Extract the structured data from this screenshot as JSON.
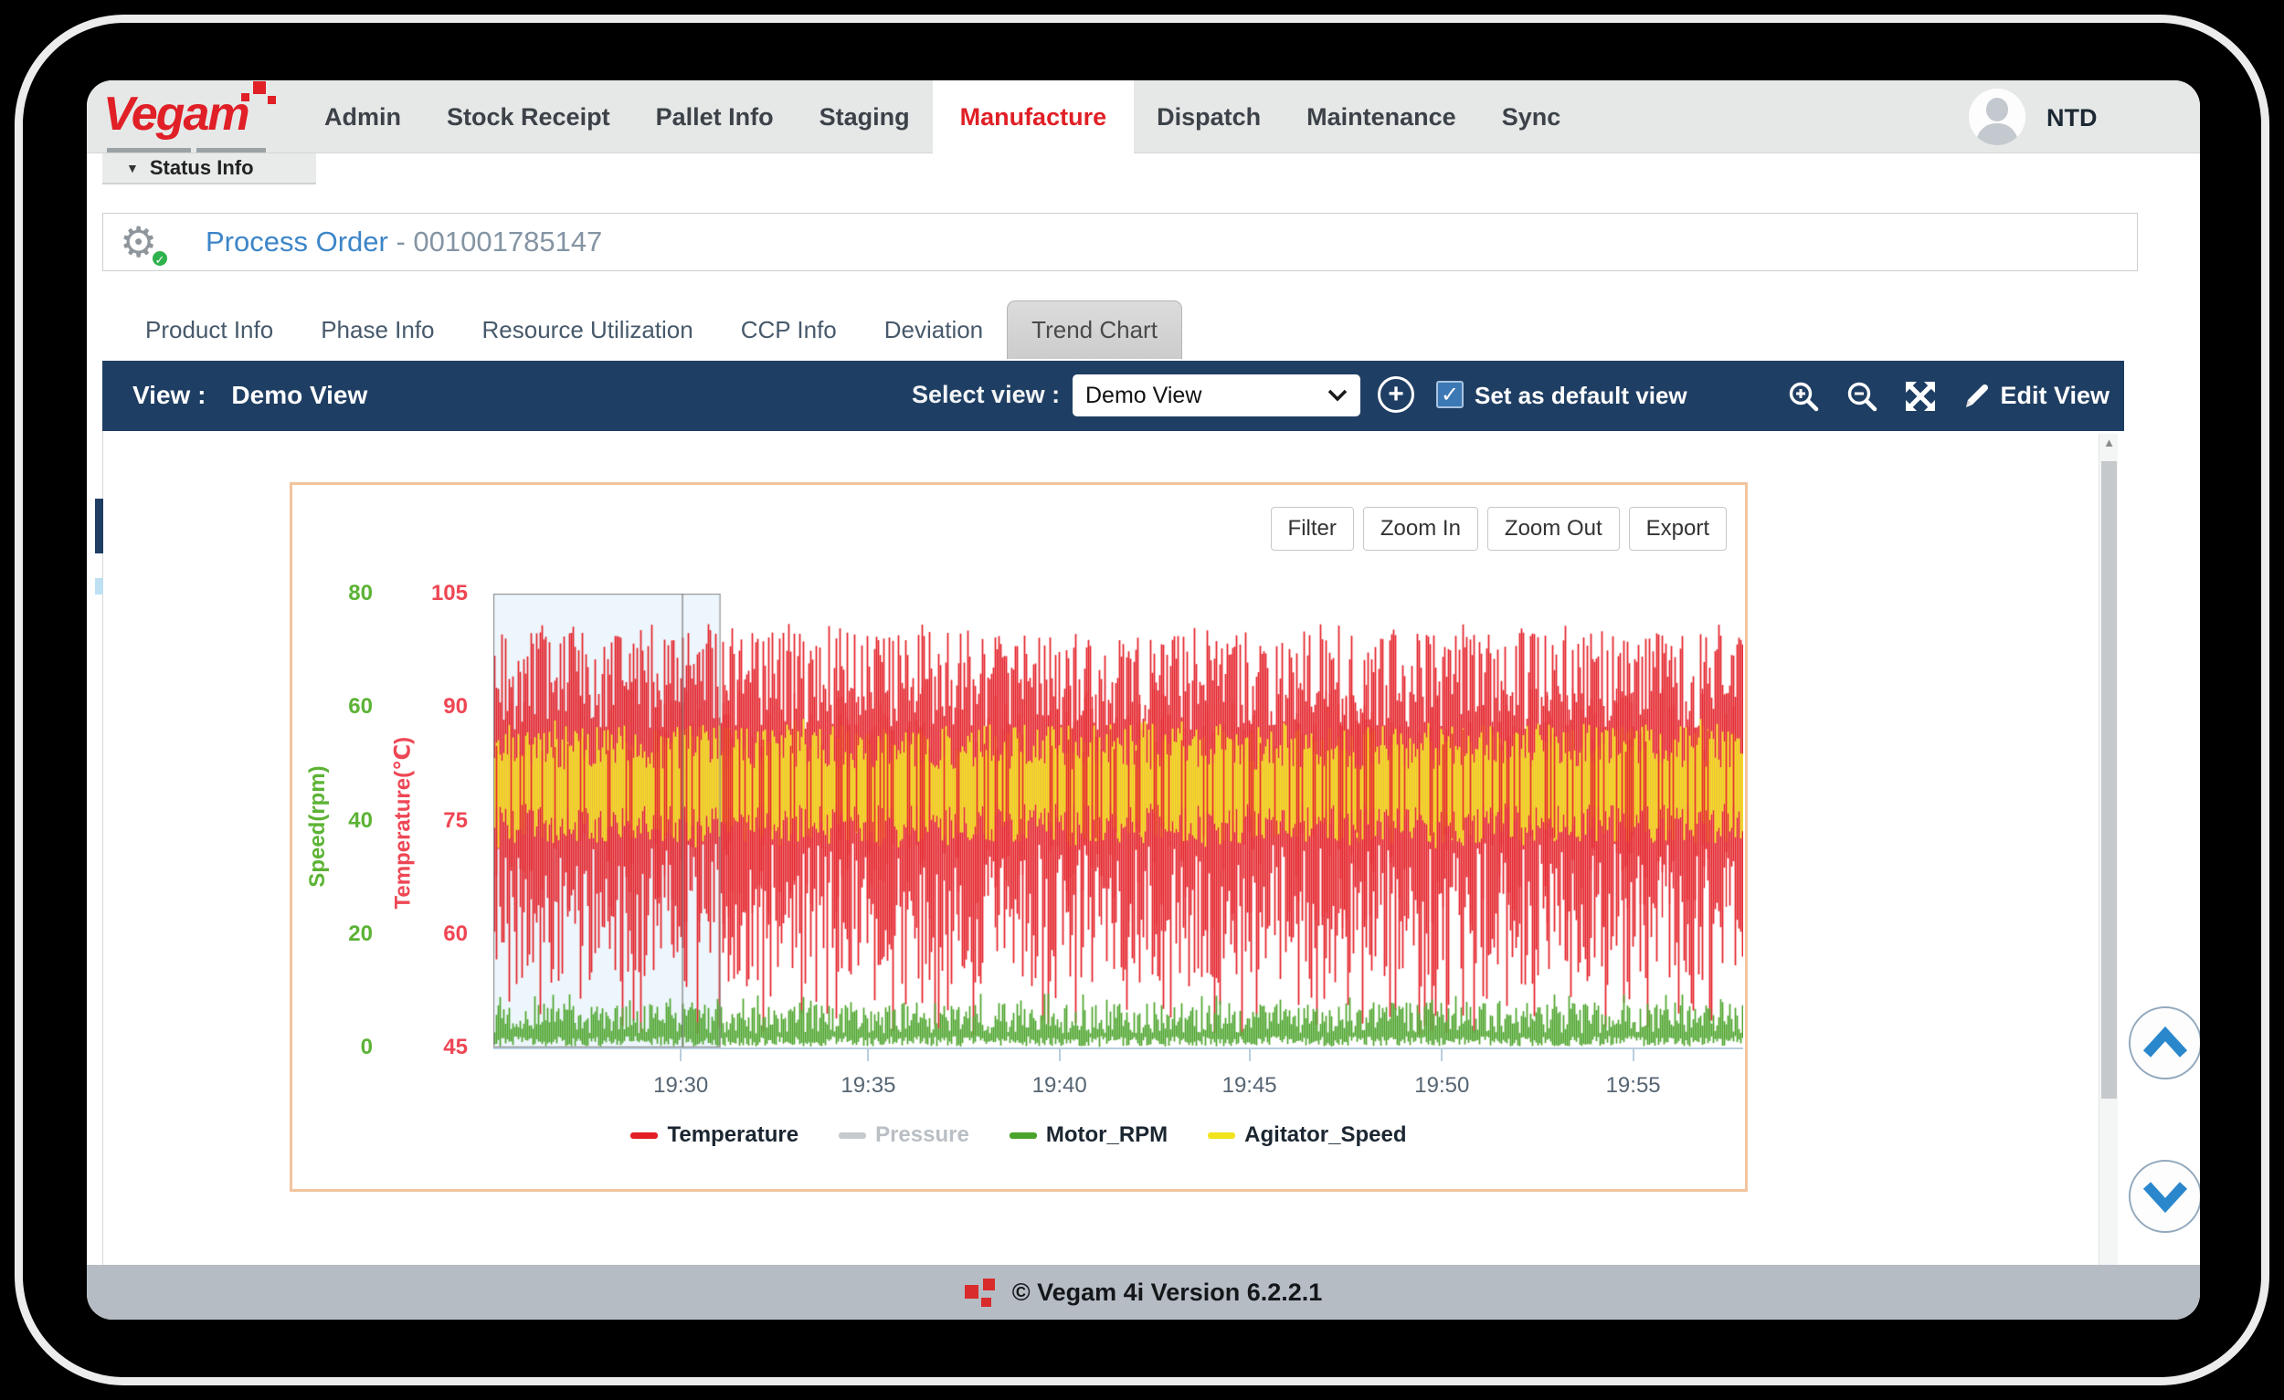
{
  "nav": {
    "logo_text": "Vegam",
    "items": [
      {
        "label": "Admin",
        "active": false
      },
      {
        "label": "Stock Receipt",
        "active": false
      },
      {
        "label": "Pallet Info",
        "active": false
      },
      {
        "label": "Staging",
        "active": false
      },
      {
        "label": "Manufacture",
        "active": true
      },
      {
        "label": "Dispatch",
        "active": false
      },
      {
        "label": "Maintenance",
        "active": false
      },
      {
        "label": "Sync",
        "active": false
      }
    ],
    "user": "NTD"
  },
  "status_bar": {
    "label": "Status Info",
    "caret": "▼"
  },
  "process_order": {
    "prefix": "Process Order",
    "separator": " - ",
    "number": "001001785147"
  },
  "tabs": [
    {
      "label": "Product Info",
      "active": false
    },
    {
      "label": "Phase Info",
      "active": false
    },
    {
      "label": "Resource Utilization",
      "active": false
    },
    {
      "label": "CCP Info",
      "active": false
    },
    {
      "label": "Deviation",
      "active": false
    },
    {
      "label": "Trend Chart",
      "active": true
    }
  ],
  "toolbar": {
    "view_label": "View :",
    "view_value": "Demo View",
    "select_label": "Select view :",
    "select_value": "Demo View",
    "plus_label": "+",
    "check_glyph": "✓",
    "set_default_label": "Set as default view",
    "set_default_checked": true,
    "edit_view_label": "Edit View"
  },
  "chart_buttons": [
    "Filter",
    "Zoom In",
    "Zoom Out",
    "Export"
  ],
  "chart_data": {
    "type": "line",
    "title": "",
    "x_axis": {
      "ticks": [
        {
          "label": "19:30",
          "pct": 15.0
        },
        {
          "label": "19:35",
          "pct": 30.0
        },
        {
          "label": "19:40",
          "pct": 45.3
        },
        {
          "label": "19:45",
          "pct": 60.5
        },
        {
          "label": "19:50",
          "pct": 75.9
        },
        {
          "label": "19:55",
          "pct": 91.2
        }
      ]
    },
    "y_axes": {
      "speed": {
        "label": "Speed(rpm)",
        "color": "#5cb335",
        "min": 0,
        "max": 80,
        "ticks": [
          "80",
          "60",
          "40",
          "20",
          "0"
        ]
      },
      "temperature": {
        "label": "Temperature(℃)",
        "color": "#ee4654",
        "min": 45,
        "max": 105,
        "ticks": [
          "105",
          "90",
          "75",
          "60",
          "45"
        ]
      }
    },
    "series": [
      {
        "name": "Temperature",
        "color": "#e31e25",
        "axis": "temperature",
        "enabled": true,
        "band": {
          "high": [
            87,
            100
          ],
          "low": [
            53,
            72
          ],
          "spike_high": [
            98,
            101
          ],
          "spike_high_prob": 0.1,
          "spike_low": [
            46.5,
            52
          ],
          "spike_low_prob": 0.1
        }
      },
      {
        "name": "Pressure",
        "color": "#c6cacd",
        "axis": "temperature",
        "enabled": false,
        "band": null
      },
      {
        "name": "Motor_RPM",
        "color": "#4aa32a",
        "axis": "speed",
        "enabled": true,
        "band": {
          "high": [
            2.5,
            8
          ],
          "low": [
            0.2,
            2
          ],
          "spike_high": [
            8,
            9.5
          ],
          "spike_high_prob": 0.05,
          "spike_low": [
            0.1,
            0.5
          ],
          "spike_low_prob": 0.05
        }
      },
      {
        "name": "Agitator_Speed",
        "color": "#f2e41c",
        "axis": "speed",
        "enabled": true,
        "band": {
          "high": [
            49,
            57
          ],
          "low": [
            36,
            43
          ],
          "spike_high": [
            57,
            58
          ],
          "spike_high_prob": 0.02,
          "spike_low": [
            35,
            36
          ],
          "spike_low_prob": 0.02
        }
      }
    ],
    "overlay_streaks": {
      "series": "Temperature",
      "prob": 0.28,
      "high": [
        84,
        93
      ],
      "low": [
        60,
        74
      ]
    },
    "selection": {
      "left_pct": 0,
      "width_pct": 18.1,
      "line_pct": 15.1,
      "fill": "rgba(222,238,250,0.55)",
      "border": "#8f8f8f"
    },
    "legend_text_enabled": "#1b2631",
    "legend_text_disabled": "#b9bfc4",
    "seed": 20
  },
  "footer": {
    "text": "© Vegam 4i Version 6.2.2.1"
  }
}
